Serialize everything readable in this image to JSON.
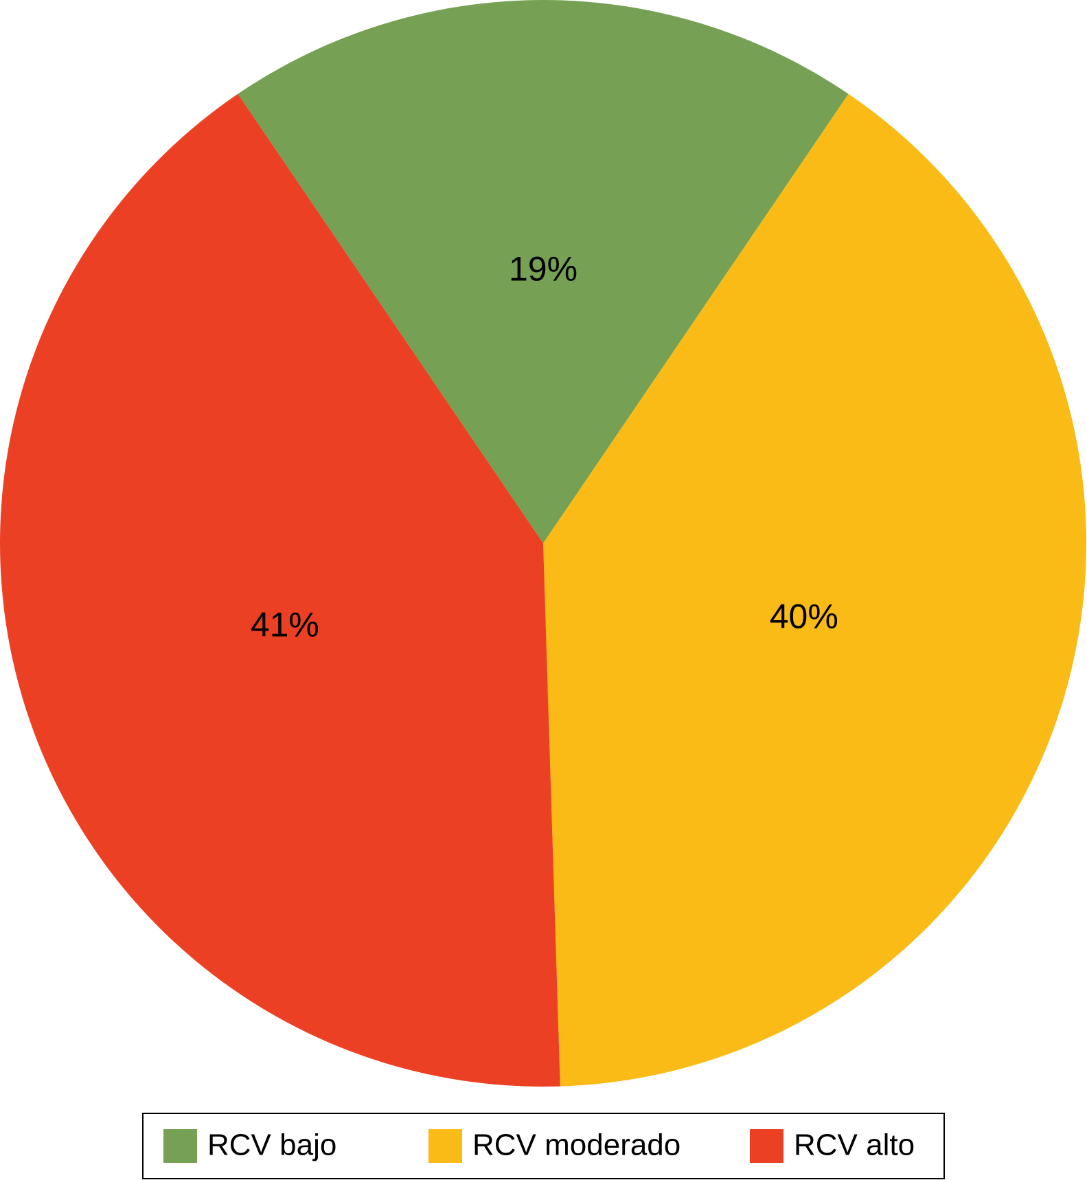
{
  "chart_data": {
    "type": "pie",
    "categories": [
      "RCV bajo",
      "RCV moderado",
      "RCV alto"
    ],
    "values": [
      19,
      40,
      41
    ],
    "value_labels": [
      "19%",
      "40%",
      "41%"
    ],
    "colors": [
      "#76a053",
      "#fbbb17",
      "#eb4023"
    ],
    "legend": "bottom"
  }
}
